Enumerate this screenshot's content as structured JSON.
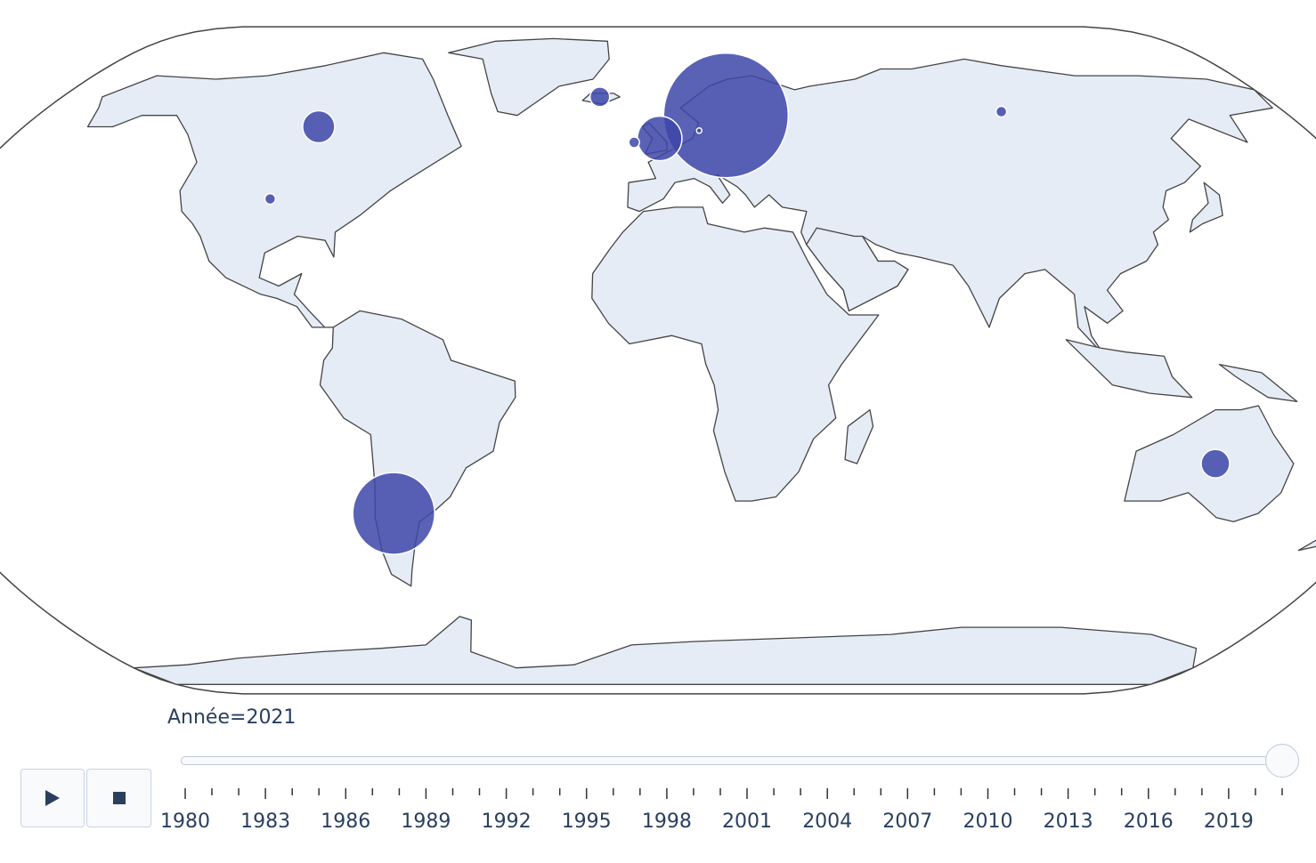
{
  "map": {
    "projection": "natural-earth",
    "land_color": "#e5ecf6",
    "border_color": "#444444",
    "marker_color": "#3d46a8",
    "markers": [
      {
        "name": "Chile/Argentina",
        "lon": -68,
        "lat": -37,
        "size": 46
      },
      {
        "name": "Scandinavia",
        "lon": 18,
        "lat": 60,
        "size": 70
      },
      {
        "name": "United Kingdom",
        "lon": -1,
        "lat": 54,
        "size": 25
      },
      {
        "name": "Ireland",
        "lon": -8,
        "lat": 53,
        "size": 6
      },
      {
        "name": "Denmark",
        "lon": 10,
        "lat": 56,
        "size": 3
      },
      {
        "name": "Iceland",
        "lon": -19,
        "lat": 65,
        "size": 11
      },
      {
        "name": "Canada",
        "lon": -97,
        "lat": 57,
        "size": 18
      },
      {
        "name": "United States",
        "lon": -100,
        "lat": 39,
        "size": 6
      },
      {
        "name": "Russia",
        "lon": 98,
        "lat": 61,
        "size": 6
      },
      {
        "name": "Australia",
        "lon": 134,
        "lat": -25,
        "size": 16
      }
    ]
  },
  "slider": {
    "label_prefix": "Année=",
    "current_value": "2021",
    "current_label": "Année=2021",
    "min_year": 1980,
    "max_year": 2021,
    "tick_labels": [
      "1980",
      "1983",
      "1986",
      "1989",
      "1992",
      "1995",
      "1998",
      "2001",
      "2004",
      "2007",
      "2010",
      "2013",
      "2016",
      "2019"
    ]
  },
  "controls": {
    "play_icon": "play-icon",
    "stop_icon": "stop-icon"
  }
}
